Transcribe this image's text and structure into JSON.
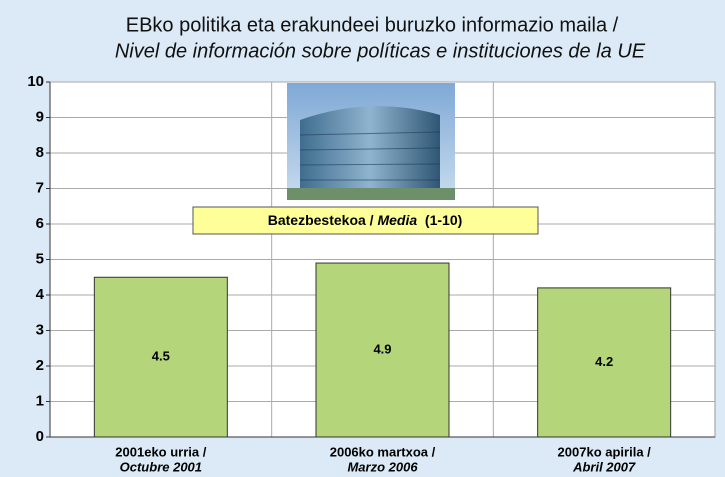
{
  "chart_data": {
    "type": "bar",
    "title": [
      "EBko politika eta erakundeei buruzko informazio maila /",
      "Nivel de información sobre políticas e instituciones de la UE"
    ],
    "categories": [
      [
        "2001eko urria /",
        "Octubre 2001"
      ],
      [
        "2006ko martxoa /",
        "Marzo 2006"
      ],
      [
        "2007ko apirila /",
        "Abril 2007"
      ]
    ],
    "values": [
      4.5,
      4.9,
      4.2
    ],
    "color": "#b4d57a",
    "ylim": [
      0,
      10
    ],
    "yticks": [
      0,
      1,
      2,
      3,
      4,
      5,
      6,
      7,
      8,
      9,
      10
    ],
    "grid": true,
    "annotation": [
      "Batezbestekoa / ",
      "Media",
      "  (1-10)"
    ]
  }
}
